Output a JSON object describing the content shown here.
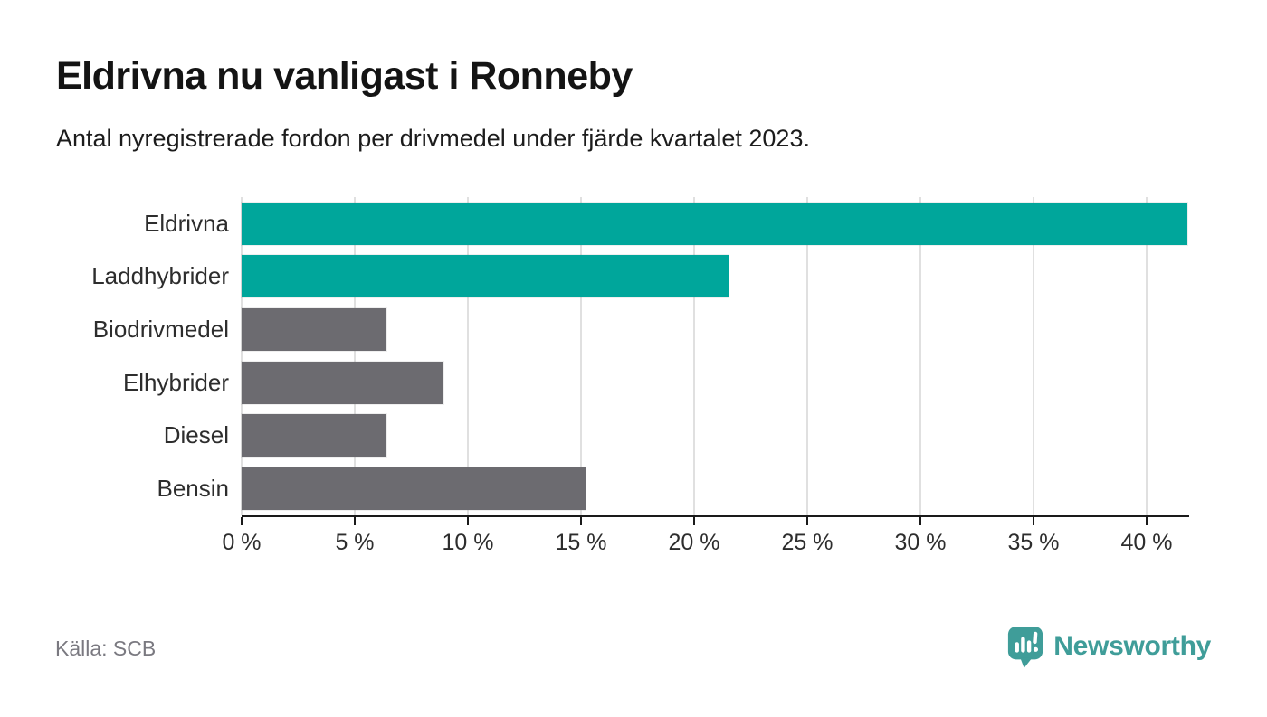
{
  "header": {
    "title": "Eldrivna nu vanligast i Ronneby",
    "subtitle": "Antal nyregistrerade fordon per drivmedel under fjärde kvartalet 2023."
  },
  "chart_data": {
    "type": "bar",
    "orientation": "horizontal",
    "title": "Eldrivna nu vanligast i Ronneby",
    "subtitle": "Antal nyregistrerade fordon per drivmedel under fjärde kvartalet 2023.",
    "categories": [
      "Eldrivna",
      "Laddhybrider",
      "Biodrivmedel",
      "Elhybrider",
      "Diesel",
      "Bensin"
    ],
    "values": [
      41.8,
      21.5,
      6.4,
      8.9,
      6.4,
      15.2
    ],
    "unit": "%",
    "xlim": [
      0,
      41.8
    ],
    "x_ticks": [
      0,
      5,
      10,
      15,
      20,
      25,
      30,
      35,
      40
    ],
    "x_tick_labels": [
      "0 %",
      "5 %",
      "10 %",
      "15 %",
      "20 %",
      "25 %",
      "30 %",
      "35 %",
      "40 %"
    ],
    "colors": [
      "#00a69b",
      "#00a69b",
      "#6c6b70",
      "#6c6b70",
      "#6c6b70",
      "#6c6b70"
    ],
    "highlight_color": "#00a69b",
    "default_color": "#6c6b70",
    "gridline_color": "#e0e0e0",
    "grid": true,
    "legend": false
  },
  "footer": {
    "source": "Källa: SCB",
    "brand": "Newsworthy",
    "brand_color": "#3f9d99"
  }
}
